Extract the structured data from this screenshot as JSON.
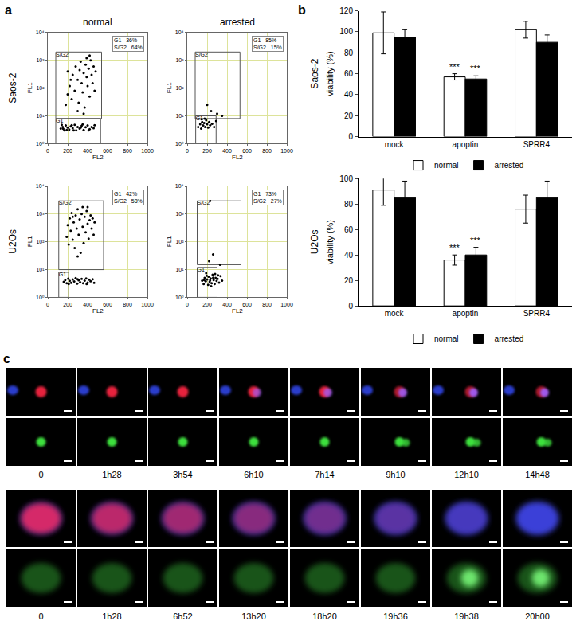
{
  "panel_labels": [
    "a",
    "b",
    "c"
  ],
  "chart_data": [
    {
      "type": "scatter",
      "title": "normal",
      "x_label": "FL2",
      "y_label": "FL1",
      "xlim": [
        0,
        1000
      ],
      "xticks": [
        0,
        200,
        400,
        600,
        800,
        1000
      ],
      "ylim": [
        1,
        10000
      ],
      "yticks": [
        {
          "value": 1,
          "label": "10⁰"
        },
        {
          "value": 10,
          "label": "10¹"
        },
        {
          "value": 100,
          "label": "10²"
        },
        {
          "value": 1000,
          "label": "10³"
        },
        {
          "value": 10000,
          "label": "10⁴"
        }
      ],
      "log": "y",
      "grid": true,
      "color": "#000000",
      "x": [
        130,
        150,
        165,
        180,
        200,
        215,
        230,
        250,
        270,
        285,
        300,
        320,
        340,
        360,
        380,
        400,
        420,
        440,
        460,
        140,
        190,
        260,
        350,
        410,
        470,
        155,
        240,
        330,
        180,
        200,
        220,
        240,
        250,
        270,
        280,
        300,
        310,
        320,
        330,
        340,
        350,
        360,
        370,
        380,
        390,
        400,
        410,
        420,
        430,
        440,
        450,
        460,
        470,
        480,
        300,
        360,
        230,
        200,
        420,
        390
      ],
      "y": [
        3.5,
        4,
        3,
        4.5,
        3.8,
        3.2,
        4.2,
        3.6,
        4.8,
        3,
        4,
        3.5,
        4.4,
        3.1,
        3.9,
        4.5,
        3.3,
        4,
        3.6,
        4.8,
        3.1,
        3,
        4.9,
        3,
        4.6,
        3.4,
        4.6,
        3.8,
        25,
        60,
        120,
        40,
        300,
        80,
        600,
        200,
        30,
        450,
        900,
        150,
        70,
        350,
        20,
        700,
        250,
        120,
        500,
        50,
        1000,
        300,
        150,
        600,
        80,
        400,
        15,
        12,
        200,
        400,
        1500,
        1200
      ],
      "gates": [
        {
          "name": "S/G2",
          "x": [
            80,
            540
          ],
          "y": [
            8,
            2000
          ]
        },
        {
          "name": "G1",
          "x": [
            80,
            530
          ],
          "y": [
            1,
            8
          ]
        }
      ],
      "stats": [
        [
          "G1",
          "36%"
        ],
        [
          "S/G2",
          "64%"
        ]
      ],
      "annotations": [
        {
          "text": "Saos-2"
        }
      ]
    },
    {
      "type": "scatter",
      "title": "arrested",
      "x_label": "FL2",
      "y_label": "FL1",
      "xlim": [
        0,
        1000
      ],
      "xticks": [
        0,
        200,
        400,
        600,
        800,
        1000
      ],
      "ylim": [
        1,
        10000
      ],
      "yticks": [
        {
          "value": 1,
          "label": "10⁰"
        },
        {
          "value": 10,
          "label": "10¹"
        },
        {
          "value": 100,
          "label": "10²"
        },
        {
          "value": 1000,
          "label": "10³"
        },
        {
          "value": 10000,
          "label": "10⁴"
        }
      ],
      "log": "y",
      "grid": true,
      "color": "#000000",
      "x": [
        110,
        130,
        140,
        150,
        160,
        170,
        180,
        190,
        200,
        210,
        220,
        230,
        250,
        270,
        290,
        175,
        145,
        240,
        300,
        200,
        350
      ],
      "y": [
        4,
        5,
        3.5,
        6,
        4.5,
        5.5,
        4,
        7,
        5,
        3.8,
        6,
        4.6,
        5.2,
        4,
        6.5,
        8,
        7.5,
        15,
        12,
        25,
        10
      ],
      "gates": [
        {
          "name": "S/G2",
          "x": [
            80,
            530
          ],
          "y": [
            8,
            2000
          ]
        },
        {
          "name": "G1",
          "x": [
            85,
            290
          ],
          "y": [
            1,
            10
          ]
        }
      ],
      "stats": [
        [
          "G1",
          "85%"
        ],
        [
          "S/G2",
          "15%"
        ]
      ]
    },
    {
      "type": "scatter",
      "x_label": "FL2",
      "y_label": "FL1",
      "xlim": [
        0,
        1000
      ],
      "xticks": [
        0,
        200,
        400,
        600,
        800,
        1000
      ],
      "ylim": [
        1,
        10000
      ],
      "yticks": [
        {
          "value": 1,
          "label": "10⁰"
        },
        {
          "value": 10,
          "label": "10¹"
        },
        {
          "value": 100,
          "label": "10²"
        },
        {
          "value": 1000,
          "label": "10³"
        },
        {
          "value": 10000,
          "label": "10⁴"
        }
      ],
      "log": "y",
      "grid": true,
      "color": "#000000",
      "x": [
        160,
        175,
        190,
        205,
        220,
        235,
        250,
        265,
        280,
        295,
        310,
        325,
        340,
        355,
        370,
        385,
        400,
        415,
        430,
        450,
        465,
        210,
        300,
        390,
        190,
        200,
        210,
        220,
        230,
        240,
        250,
        260,
        270,
        280,
        290,
        300,
        310,
        320,
        330,
        340,
        350,
        360,
        370,
        380,
        390,
        400,
        410,
        420,
        430,
        440,
        450,
        460,
        470,
        250,
        350,
        300,
        400
      ],
      "y": [
        3.6,
        4.2,
        3.2,
        4.7,
        3.9,
        3.3,
        4.4,
        3.7,
        4.9,
        3.1,
        4.1,
        3.5,
        4.6,
        3.2,
        4,
        4.8,
        3.4,
        4.3,
        3.8,
        4.5,
        3.3,
        3,
        4.5,
        3,
        150,
        400,
        80,
        700,
        250,
        1100,
        120,
        500,
        60,
        900,
        300,
        1500,
        180,
        650,
        40,
        1000,
        350,
        90,
        800,
        220,
        1300,
        450,
        130,
        600,
        900,
        300,
        700,
        180,
        500,
        800,
        1800,
        30,
        1800
      ],
      "gates": [
        {
          "name": "S/G2",
          "x": [
            110,
            560
          ],
          "y": [
            10,
            3000
          ]
        },
        {
          "name": "G1",
          "x": [
            110,
            210
          ],
          "y": [
            1,
            8
          ]
        }
      ],
      "stats": [
        [
          "G1",
          "42%"
        ],
        [
          "S/G2",
          "58%"
        ]
      ],
      "annotations": [
        {
          "text": "U2Os"
        }
      ]
    },
    {
      "type": "scatter",
      "x_label": "FL2",
      "y_label": "FL1",
      "xlim": [
        0,
        1000
      ],
      "xticks": [
        0,
        200,
        400,
        600,
        800,
        1000
      ],
      "ylim": [
        1,
        10000
      ],
      "yticks": [
        {
          "value": 1,
          "label": "10⁰"
        },
        {
          "value": 10,
          "label": "10¹"
        },
        {
          "value": 100,
          "label": "10²"
        },
        {
          "value": 1000,
          "label": "10³"
        },
        {
          "value": 10000,
          "label": "10⁴"
        }
      ],
      "log": "y",
      "grid": true,
      "color": "#000000",
      "x": [
        150,
        165,
        175,
        185,
        195,
        200,
        210,
        215,
        225,
        235,
        245,
        255,
        265,
        275,
        285,
        295,
        305,
        320,
        335,
        350,
        190,
        240,
        280,
        170,
        230,
        260,
        310,
        220,
        260,
        330,
        230
      ],
      "y": [
        4,
        3,
        5,
        3.8,
        6,
        4.4,
        2.8,
        5.5,
        3.6,
        4.8,
        3.2,
        6.5,
        4.2,
        3,
        5,
        3.9,
        4.6,
        3.4,
        5.8,
        4,
        7.5,
        2.5,
        7,
        4.2,
        4.1,
        5.1,
        6.2,
        20,
        35,
        15,
        3000
      ],
      "gates": [
        {
          "name": "S/G2",
          "x": [
            100,
            540
          ],
          "y": [
            15,
            3000
          ]
        },
        {
          "name": "G1",
          "x": [
            100,
            300
          ],
          "y": [
            1,
            12
          ]
        }
      ],
      "stats": [
        [
          "G1",
          "73%"
        ],
        [
          "S/G2",
          "27%"
        ]
      ]
    },
    {
      "type": "bar",
      "categories": [
        "mock",
        "apoptin",
        "SPRR4"
      ],
      "series": [
        {
          "name": "normal",
          "color": "#ffffff",
          "values": [
            99,
            57,
            102
          ],
          "errors": [
            20,
            3,
            8
          ]
        },
        {
          "name": "arrested",
          "color": "#000000",
          "values": [
            95,
            55,
            90
          ],
          "errors": [
            7,
            3,
            7
          ]
        }
      ],
      "ylim": [
        0,
        120
      ],
      "yticks": [
        0,
        20,
        40,
        60,
        80,
        100,
        120
      ],
      "y_label": "viability (%)",
      "grid": false,
      "legend": "bottom",
      "annotations": [
        {
          "text": "Saos-2"
        },
        {
          "text": "***",
          "category": "apoptin",
          "series": "normal"
        },
        {
          "text": "***",
          "category": "apoptin",
          "series": "arrested"
        }
      ]
    },
    {
      "type": "bar",
      "categories": [
        "mock",
        "apoptin",
        "SPRR4"
      ],
      "series": [
        {
          "name": "normal",
          "color": "#ffffff",
          "values": [
            91,
            36,
            76
          ],
          "errors": [
            12,
            4,
            11
          ]
        },
        {
          "name": "arrested",
          "color": "#000000",
          "values": [
            85,
            40,
            85
          ],
          "errors": [
            13,
            6,
            13
          ]
        }
      ],
      "ylim": [
        0,
        100
      ],
      "yticks": [
        0,
        20,
        40,
        60,
        80,
        100
      ],
      "y_label": "viability (%)",
      "grid": false,
      "legend": "bottom",
      "annotations": [
        {
          "text": "U2Os"
        },
        {
          "text": "***",
          "category": "apoptin",
          "series": "normal"
        },
        {
          "text": "***",
          "category": "apoptin",
          "series": "arrested"
        }
      ]
    }
  ],
  "image_panel": {
    "rows": [
      {
        "times": [
          "0",
          "1h28",
          "3h54",
          "6h10",
          "7h14",
          "9h10",
          "12h10",
          "14h48"
        ]
      },
      {
        "times": [
          "0",
          "1h28",
          "6h52",
          "13h20",
          "18h20",
          "19h36",
          "19h38",
          "20h00"
        ]
      }
    ]
  }
}
